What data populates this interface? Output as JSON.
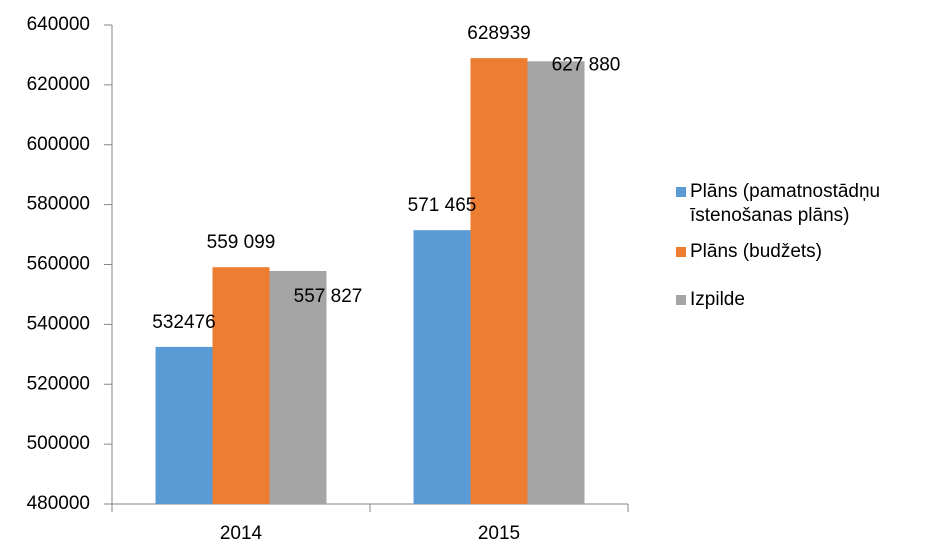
{
  "chart_data": {
    "type": "bar",
    "categories": [
      "2014",
      "2015"
    ],
    "series": [
      {
        "name": "Plāns (pamatnostādņu īstenošanas plāns)",
        "color": "#5b9bd5",
        "values": [
          532476,
          571465
        ],
        "value_labels": [
          "532476",
          "571 465"
        ]
      },
      {
        "name": "Plāns (budžets)",
        "color": "#ed7d31",
        "values": [
          559099,
          628939
        ],
        "value_labels": [
          "559 099",
          "628939"
        ]
      },
      {
        "name": "Izpilde",
        "color": "#a5a5a5",
        "values": [
          557827,
          627880
        ],
        "value_labels": [
          "557 827",
          "627 880"
        ]
      }
    ],
    "ylim": [
      480000,
      640000
    ],
    "yticks": [
      480000,
      500000,
      520000,
      540000,
      560000,
      580000,
      600000,
      620000,
      640000
    ],
    "grid": false,
    "legend": "right"
  }
}
